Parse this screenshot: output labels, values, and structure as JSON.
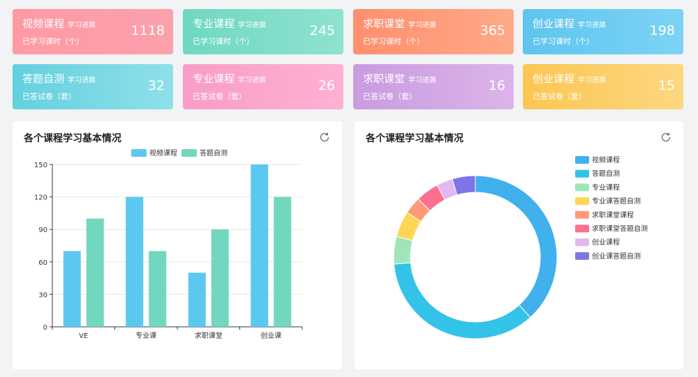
{
  "stats": [
    {
      "title": "视频课程",
      "sub": "学习进展",
      "desc": "已学习课时（个）",
      "value": "1118",
      "c1": "#fe9aa4",
      "c2": "#fca0ab"
    },
    {
      "title": "专业课程",
      "sub": "学习进展",
      "desc": "已学习课时（个）",
      "value": "245",
      "c1": "#6fd8c1",
      "c2": "#8ee2d0"
    },
    {
      "title": "求职课堂",
      "sub": "学习进展",
      "desc": "已学习课时（个）",
      "value": "365",
      "c1": "#fe8f6e",
      "c2": "#ffa988"
    },
    {
      "title": "创业课程",
      "sub": "学习进展",
      "desc": "已学习课时（个）",
      "value": "198",
      "c1": "#5ec5ef",
      "c2": "#7dd3f5"
    },
    {
      "title": "答题自测",
      "sub": "学习进展",
      "desc": "已答试卷（套）",
      "value": "32",
      "c1": "#64d0de",
      "c2": "#8fe0ea"
    },
    {
      "title": "专业课程",
      "sub": "学习进展",
      "desc": "已答试卷（套）",
      "value": "26",
      "c1": "#f89dc7",
      "c2": "#ffb1d3"
    },
    {
      "title": "求职课堂",
      "sub": "学习进展",
      "desc": "已答试卷（套）",
      "value": "16",
      "c1": "#c99be0",
      "c2": "#dcb4ea"
    },
    {
      "title": "创业课程",
      "sub": "学习进展",
      "desc": "已答试卷（套）",
      "value": "15",
      "c1": "#fcc653",
      "c2": "#fdd77f"
    }
  ],
  "bar_panel": {
    "title": "各个课程学习基本情况"
  },
  "pie_panel": {
    "title": "各个课程学习基本情况"
  },
  "chart_data": [
    {
      "type": "bar",
      "categories": [
        "VE",
        "专业课",
        "求职课堂",
        "创业课"
      ],
      "ylim": [
        0,
        150
      ],
      "yticks": [
        0,
        30,
        60,
        90,
        120,
        150
      ],
      "legend_position": "top-center",
      "grid": true,
      "series": [
        {
          "name": "视频课程",
          "color": "#5bc8ef",
          "values": [
            70,
            120,
            50,
            150
          ]
        },
        {
          "name": "答题自测",
          "color": "#72d7bf",
          "values": [
            100,
            70,
            90,
            120
          ]
        }
      ]
    },
    {
      "type": "pie",
      "donut": true,
      "legend_position": "right",
      "slices": [
        {
          "name": "视频课程",
          "color": "#41b1ee",
          "value": 335
        },
        {
          "name": "答题自测",
          "color": "#34c3e8",
          "value": 310
        },
        {
          "name": "专业课程",
          "color": "#9ee6b9",
          "value": 48
        },
        {
          "name": "专业课答题自测",
          "color": "#ffd655",
          "value": 45
        },
        {
          "name": "求职课堂课程",
          "color": "#fe9a76",
          "value": 30
        },
        {
          "name": "求职课堂答题自测",
          "color": "#fd6f8f",
          "value": 40
        },
        {
          "name": "创业课程",
          "color": "#e1b8f2",
          "value": 28
        },
        {
          "name": "创业课答题自测",
          "color": "#7e76e6",
          "value": 40
        }
      ]
    }
  ]
}
